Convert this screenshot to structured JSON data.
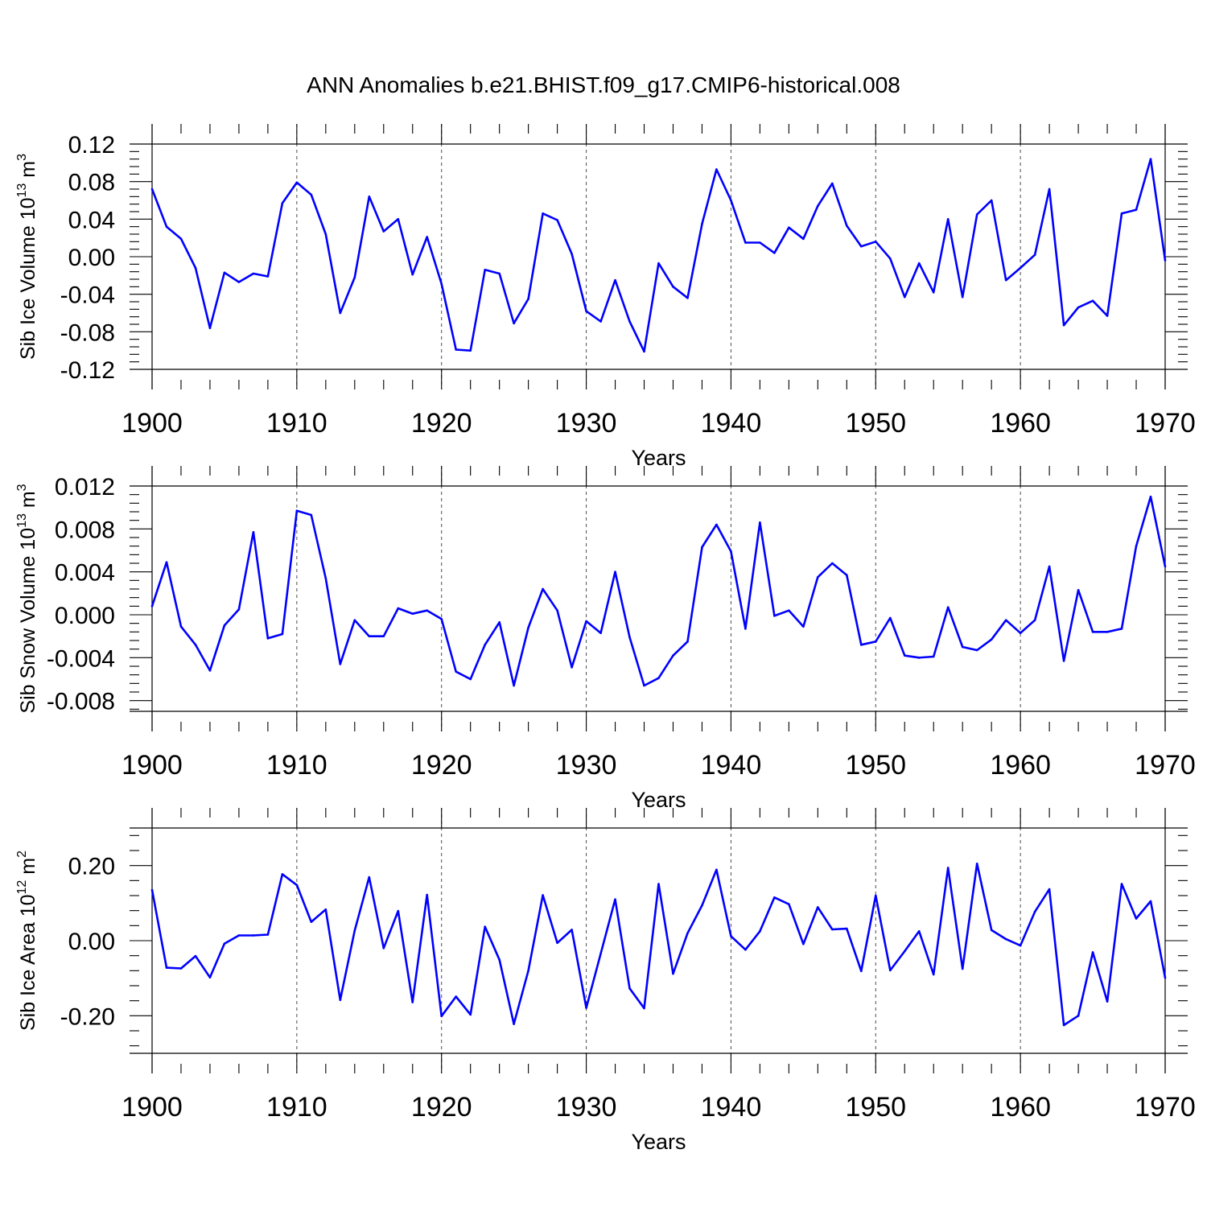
{
  "title": "ANN Anomalies b.e21.BHIST.f09_g17.CMIP6-historical.008",
  "colors": {
    "series": "#0000ff",
    "axis": "#000000"
  },
  "chart_data": [
    {
      "type": "line",
      "name": "ice-volume",
      "ylabel_main": "Sib Ice Volume 10",
      "ylabel_exp": "13",
      "ylabel_unit": " m",
      "ylabel_unit_exp": "3",
      "xlabel": "Years",
      "xlim": [
        1900,
        1970
      ],
      "ylim": [
        -0.12,
        0.12
      ],
      "x_ticks": [
        "1900",
        "1910",
        "1920",
        "1930",
        "1940",
        "1950",
        "1960",
        "1970"
      ],
      "y_ticks": [
        {
          "value": -0.12,
          "label": "-0.12"
        },
        {
          "value": -0.08,
          "label": "-0.08"
        },
        {
          "value": -0.04,
          "label": "-0.04"
        },
        {
          "value": 0.0,
          "label": "0.00"
        },
        {
          "value": 0.04,
          "label": "0.04"
        },
        {
          "value": 0.08,
          "label": "0.08"
        },
        {
          "value": 0.12,
          "label": "0.12"
        }
      ],
      "x_start": 1900,
      "values": [
        0.072,
        0.032,
        0.019,
        -0.012,
        -0.076,
        -0.017,
        -0.027,
        -0.018,
        -0.021,
        0.057,
        0.079,
        0.066,
        0.024,
        -0.06,
        -0.022,
        0.064,
        0.027,
        0.04,
        -0.019,
        0.021,
        -0.029,
        -0.099,
        -0.1,
        -0.014,
        -0.018,
        -0.071,
        -0.045,
        0.046,
        0.039,
        0.003,
        -0.058,
        -0.069,
        -0.025,
        -0.069,
        -0.101,
        -0.007,
        -0.032,
        -0.044,
        0.035,
        0.093,
        0.06,
        0.015,
        0.015,
        0.004,
        0.031,
        0.019,
        0.054,
        0.078,
        0.033,
        0.011,
        0.016,
        -0.002,
        -0.043,
        -0.007,
        -0.038,
        0.04,
        -0.043,
        0.045,
        0.06,
        -0.025,
        -0.012,
        0.002,
        0.072,
        -0.073,
        -0.054,
        -0.047,
        -0.063,
        0.046,
        0.05,
        0.104,
        -0.004
      ]
    },
    {
      "type": "line",
      "name": "snow-volume",
      "ylabel_main": "Sib Snow Volume 10",
      "ylabel_exp": "13",
      "ylabel_unit": " m",
      "ylabel_unit_exp": "3",
      "xlabel": "Years",
      "xlim": [
        1900,
        1970
      ],
      "ylim": [
        -0.009,
        0.012
      ],
      "x_ticks": [
        "1900",
        "1910",
        "1920",
        "1930",
        "1940",
        "1950",
        "1960",
        "1970"
      ],
      "y_ticks": [
        {
          "value": -0.008,
          "label": "-0.008"
        },
        {
          "value": -0.004,
          "label": "-0.004"
        },
        {
          "value": 0.0,
          "label": "0.000"
        },
        {
          "value": 0.004,
          "label": "0.004"
        },
        {
          "value": 0.008,
          "label": "0.008"
        },
        {
          "value": 0.012,
          "label": "0.012"
        }
      ],
      "x_start": 1900,
      "values": [
        0.0008,
        0.0049,
        -0.0011,
        -0.0028,
        -0.0052,
        -0.001,
        0.0005,
        0.0077,
        -0.0022,
        -0.0018,
        0.0097,
        0.0093,
        0.0034,
        -0.0046,
        -0.0005,
        -0.002,
        -0.002,
        0.0006,
        0.0001,
        0.0004,
        -0.0004,
        -0.0053,
        -0.006,
        -0.0028,
        -0.0007,
        -0.0066,
        -0.0012,
        0.0024,
        0.0004,
        -0.0049,
        -0.0006,
        -0.0017,
        0.004,
        -0.0021,
        -0.0066,
        -0.0059,
        -0.0038,
        -0.0025,
        0.0063,
        0.0084,
        0.0059,
        -0.0013,
        0.0086,
        -0.0001,
        0.0004,
        -0.0011,
        0.0035,
        0.0048,
        0.0037,
        -0.0028,
        -0.0025,
        -0.0003,
        -0.0038,
        -0.004,
        -0.0039,
        0.0007,
        -0.003,
        -0.0033,
        -0.0023,
        -0.0005,
        -0.0017,
        -0.0005,
        0.0045,
        -0.0043,
        0.0023,
        -0.0016,
        -0.0016,
        -0.0013,
        0.0064,
        0.011,
        0.0045
      ]
    },
    {
      "type": "line",
      "name": "ice-area",
      "ylabel_main": "Sib Ice Area 10",
      "ylabel_exp": "12",
      "ylabel_unit": " m",
      "ylabel_unit_exp": "2",
      "xlabel": "Years",
      "xlim": [
        1900,
        1970
      ],
      "ylim": [
        -0.3,
        0.3
      ],
      "x_ticks": [
        "1900",
        "1910",
        "1920",
        "1930",
        "1940",
        "1950",
        "1960",
        "1970"
      ],
      "y_ticks": [
        {
          "value": -0.2,
          "label": "-0.20"
        },
        {
          "value": 0.0,
          "label": "0.00"
        },
        {
          "value": 0.2,
          "label": "0.20"
        }
      ],
      "x_start": 1900,
      "values": [
        0.135,
        -0.072,
        -0.074,
        -0.041,
        -0.098,
        -0.008,
        0.014,
        0.014,
        0.016,
        0.177,
        0.148,
        0.05,
        0.083,
        -0.158,
        0.027,
        0.169,
        -0.02,
        0.079,
        -0.164,
        0.122,
        -0.201,
        -0.149,
        -0.197,
        0.037,
        -0.051,
        -0.222,
        -0.08,
        0.121,
        -0.006,
        0.029,
        -0.179,
        -0.034,
        0.11,
        -0.127,
        -0.18,
        0.151,
        -0.088,
        0.02,
        0.094,
        0.189,
        0.012,
        -0.024,
        0.025,
        0.115,
        0.097,
        -0.009,
        0.089,
        0.03,
        0.032,
        -0.081,
        0.12,
        -0.079,
        -0.028,
        0.025,
        -0.09,
        0.194,
        -0.075,
        0.205,
        0.028,
        0.004,
        -0.013,
        0.077,
        0.137,
        -0.225,
        -0.2,
        -0.031,
        -0.162,
        0.151,
        0.059,
        0.105,
        -0.099
      ]
    }
  ]
}
